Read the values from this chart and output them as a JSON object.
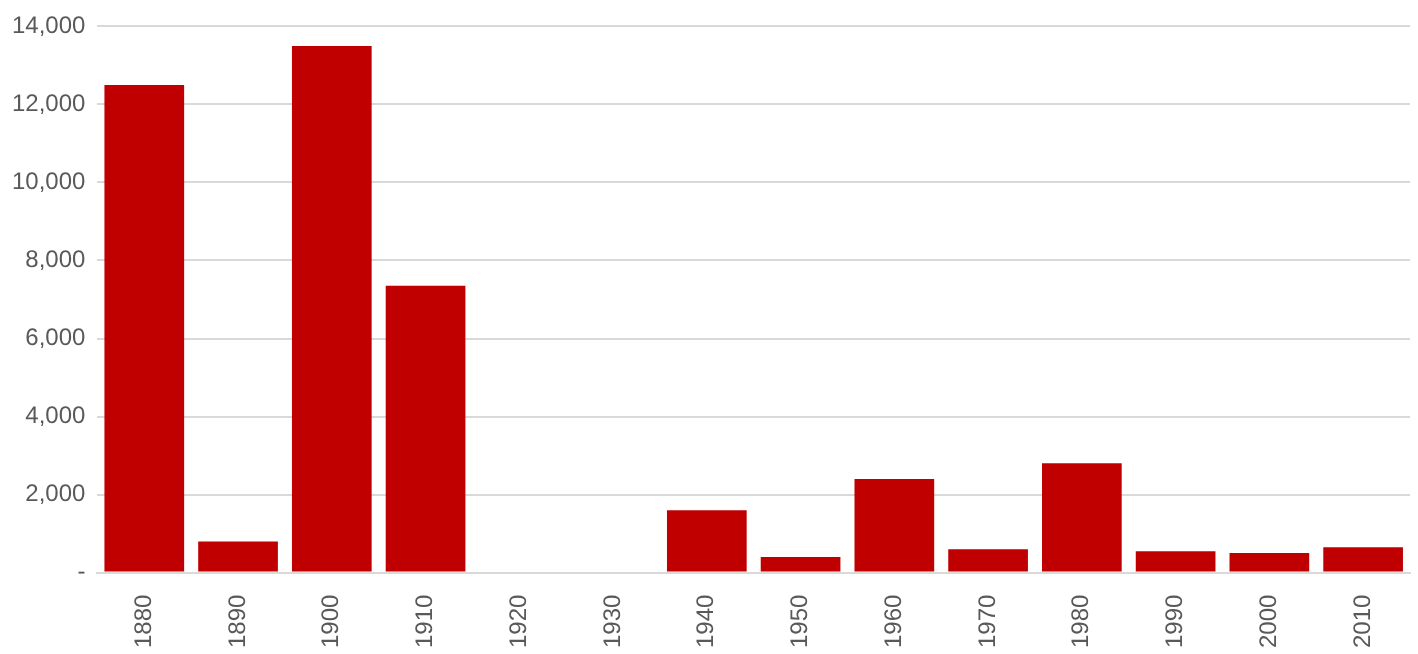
{
  "chart_data": {
    "type": "bar",
    "categories": [
      "1880",
      "1890",
      "1900",
      "1910",
      "1920",
      "1930",
      "1940",
      "1950",
      "1960",
      "1970",
      "1980",
      "1990",
      "2000",
      "2010"
    ],
    "values": [
      12500,
      800,
      13500,
      7350,
      0,
      0,
      1600,
      400,
      2400,
      600,
      2800,
      550,
      500,
      650
    ],
    "color": "#c00000",
    "ylim": [
      0,
      14000
    ],
    "yticks": [
      {
        "value": 0,
        "label": "-"
      },
      {
        "value": 2000,
        "label": "2,000"
      },
      {
        "value": 4000,
        "label": "4,000"
      },
      {
        "value": 6000,
        "label": "6,000"
      },
      {
        "value": 8000,
        "label": "8,000"
      },
      {
        "value": 10000,
        "label": "10,000"
      },
      {
        "value": 12000,
        "label": "12,000"
      },
      {
        "value": 14000,
        "label": "14,000"
      }
    ],
    "grid": "y"
  }
}
